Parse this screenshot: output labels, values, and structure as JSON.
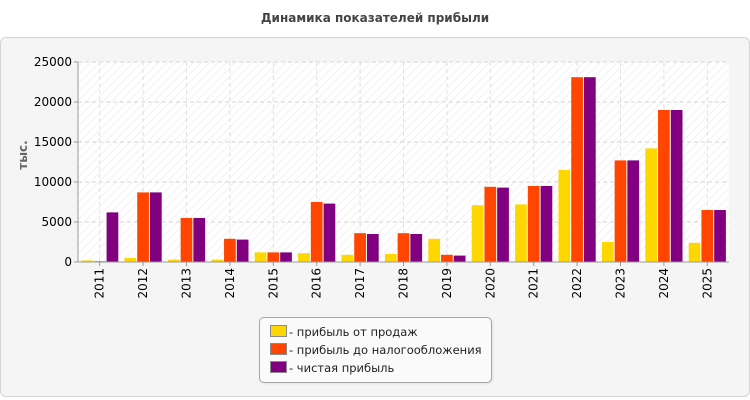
{
  "chart_data": {
    "type": "bar",
    "title": "Динамика показателей прибыли",
    "ylabel": "тыс.",
    "xlabel": "",
    "ylim": [
      0,
      25000
    ],
    "yticks": [
      0,
      5000,
      10000,
      15000,
      20000,
      25000
    ],
    "grid": true,
    "legend_position": "bottom",
    "categories": [
      "2011",
      "2012",
      "2013",
      "2014",
      "2015",
      "2016",
      "2017",
      "2018",
      "2019",
      "2020",
      "2021",
      "2022",
      "2023",
      "2024",
      "2025"
    ],
    "series": [
      {
        "name": "- прибыль от продаж",
        "color": "#ffd700",
        "values": [
          200,
          500,
          300,
          300,
          1200,
          1100,
          900,
          1000,
          2900,
          7100,
          7200,
          11500,
          2500,
          14200,
          2400
        ]
      },
      {
        "name": "- прибыль до налогообложения",
        "color": "#ff4500",
        "values": [
          100,
          8700,
          5500,
          2900,
          1200,
          7500,
          3600,
          3600,
          900,
          9400,
          9500,
          23100,
          12700,
          19000,
          6500
        ]
      },
      {
        "name": "- чистая прибыль",
        "color": "#800080",
        "values": [
          6200,
          8700,
          5500,
          2800,
          1200,
          7300,
          3500,
          3500,
          800,
          9300,
          9500,
          23100,
          12700,
          19000,
          6500
        ]
      }
    ]
  }
}
